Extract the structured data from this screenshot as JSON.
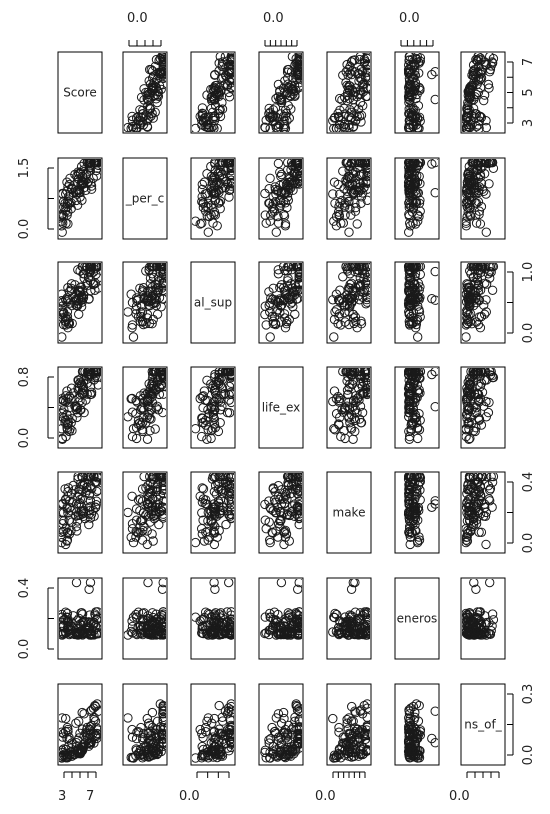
{
  "chart_data": {
    "type": "scatter",
    "kind": "scatterplot-matrix",
    "variables": [
      {
        "label": "Score",
        "range": [
          2.9,
          7.8
        ]
      },
      {
        "label": "_per_c",
        "range": [
          0.0,
          1.7
        ]
      },
      {
        "label": "al_sup",
        "range": [
          0.0,
          1.65
        ]
      },
      {
        "label": "life_ex",
        "range": [
          0.0,
          1.15
        ]
      },
      {
        "label": "make",
        "range": [
          0.0,
          0.65
        ]
      },
      {
        "label": "eneros",
        "range": [
          0.0,
          0.58
        ]
      },
      {
        "label": "ns_of_",
        "range": [
          0.0,
          0.46
        ]
      }
    ],
    "tick_labels": {
      "top": [
        {
          "col": 1,
          "text": "0.0"
        },
        {
          "col": 3,
          "text": "0.0"
        },
        {
          "col": 5,
          "text": "0.0"
        }
      ],
      "bottom": [
        {
          "col": 0,
          "text": "3"
        },
        {
          "col": 0,
          "text": "7"
        },
        {
          "col": 2,
          "text": "0.0"
        },
        {
          "col": 4,
          "text": "0.0"
        },
        {
          "col": 6,
          "text": "0.0"
        }
      ],
      "right": [
        {
          "row": 0,
          "texts": [
            "3",
            "5",
            "7"
          ]
        },
        {
          "row": 2,
          "texts": [
            "0.0",
            "1.0"
          ]
        },
        {
          "row": 4,
          "texts": [
            "0.0",
            "0.4"
          ]
        },
        {
          "row": 6,
          "texts": [
            "0.0",
            "0.3"
          ]
        }
      ],
      "left": [
        {
          "row": 1,
          "texts": [
            "0.0",
            "1.5"
          ]
        },
        {
          "row": 3,
          "texts": [
            "0.0",
            "0.8"
          ]
        },
        {
          "row": 5,
          "texts": [
            "0.0",
            "0.4"
          ]
        }
      ]
    },
    "correlation_shape": [
      [
        1,
        0.8,
        0.75,
        0.75,
        0.5,
        0.1,
        0.4
      ],
      [
        0.8,
        1,
        0.7,
        0.8,
        0.4,
        0.0,
        0.35
      ],
      [
        0.75,
        0.7,
        1,
        0.65,
        0.45,
        0.05,
        0.2
      ],
      [
        0.75,
        0.8,
        0.65,
        1,
        0.4,
        0.0,
        0.3
      ],
      [
        0.5,
        0.4,
        0.45,
        0.4,
        1,
        0.3,
        0.45
      ],
      [
        0.1,
        0.0,
        0.05,
        0.0,
        0.3,
        1,
        0.3
      ],
      [
        0.4,
        0.35,
        0.2,
        0.3,
        0.45,
        0.3,
        1
      ]
    ],
    "point_color": "#1a1a1a",
    "frame_color": "#000000"
  }
}
